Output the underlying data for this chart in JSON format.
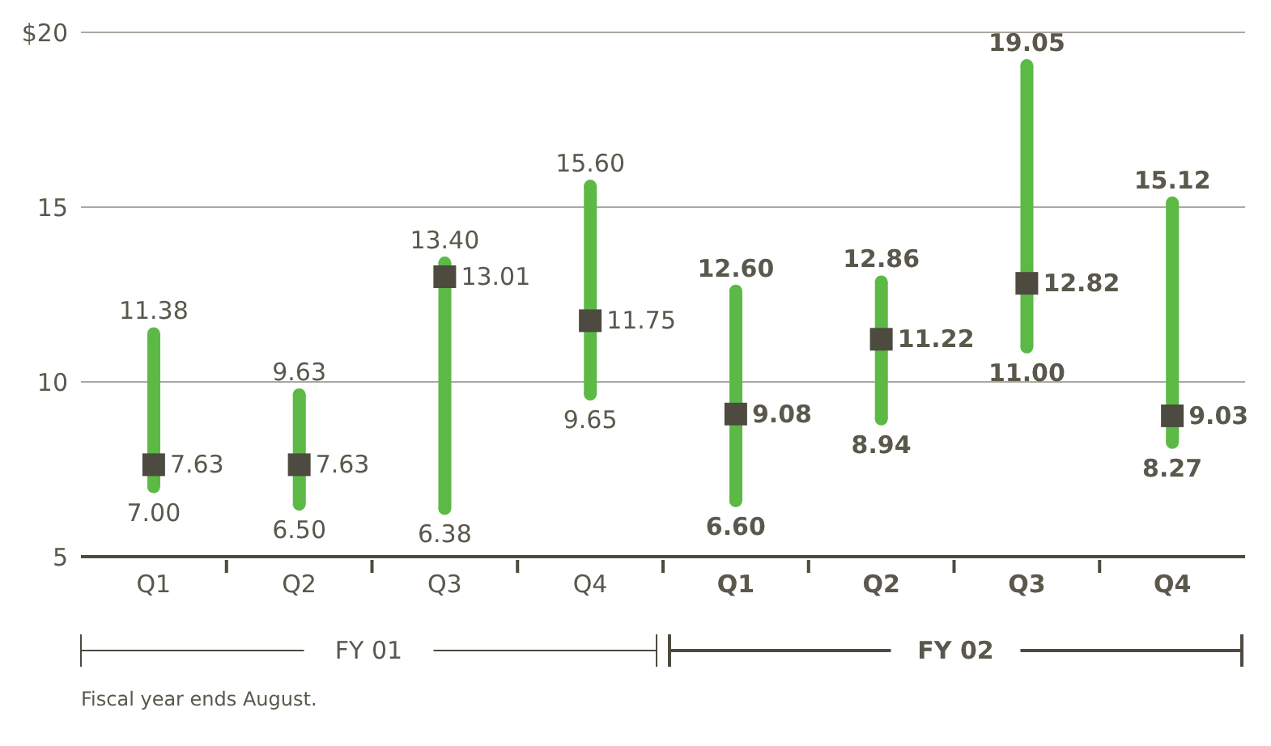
{
  "chart_data": {
    "type": "bar",
    "categories": [
      "Q1",
      "Q2",
      "Q3",
      "Q4",
      "Q1",
      "Q2",
      "Q3",
      "Q4"
    ],
    "series": [
      {
        "color": "#5cb946",
        "base": [
          7.0,
          6.5,
          6.38,
          9.65,
          6.6,
          8.94,
          11.0,
          8.27
        ],
        "values": [
          4.38,
          3.13,
          7.02,
          5.95,
          6.0,
          3.92,
          8.05,
          6.85
        ]
      },
      {
        "type": "scatter",
        "marker": "circle",
        "color": "#5cb946",
        "values": [
          11.38,
          9.63,
          13.4,
          15.6,
          12.6,
          12.86,
          19.05,
          15.12
        ],
        "value_labels": [
          "11.38",
          "9.63",
          "13.40",
          "15.60",
          "12.60",
          "12.86",
          "19.05",
          "15.12"
        ]
      },
      {
        "type": "scatter",
        "marker": "circle",
        "color": "#5cb946",
        "values": [
          7.0,
          6.5,
          6.38,
          9.65,
          6.6,
          8.94,
          11.0,
          8.27
        ],
        "value_labels": [
          "7.00",
          "6.50",
          "6.38",
          "9.65",
          "6.60",
          "8.94",
          "11.00",
          "8.27"
        ]
      },
      {
        "type": "scatter",
        "marker": "square",
        "color": "#4d4a3f",
        "values": [
          7.63,
          7.63,
          13.01,
          11.75,
          9.08,
          11.22,
          12.82,
          9.03
        ],
        "value_labels": [
          "7.63",
          "7.63",
          "13.01",
          "11.75",
          "9.08",
          "11.22",
          "12.82",
          "9.03"
        ]
      }
    ],
    "ylim": [
      5,
      20
    ],
    "yticks": [
      5,
      10,
      15,
      {
        "value": 20,
        "label": "$20"
      }
    ],
    "grid": "y",
    "annotations": [
      "FY 01",
      "FY 02",
      "Fiscal year ends August."
    ]
  }
}
